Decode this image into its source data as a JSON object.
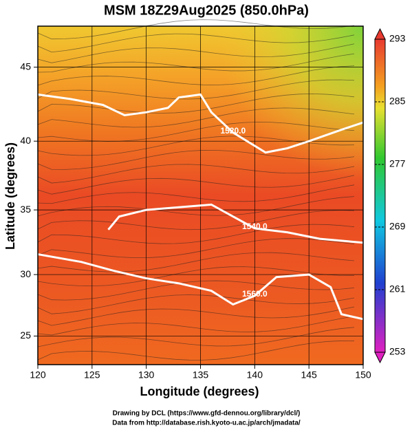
{
  "chart_data": {
    "type": "map",
    "title": "MSM 18Z29Aug2025 (850.0hPa)",
    "xlabel": "Longitude (degrees)",
    "ylabel": "Latitude  (degrees)",
    "projection": "mercator",
    "grid": true,
    "xlim": [
      120,
      150
    ],
    "ylim": [
      22.6,
      47.6
    ],
    "xticks": [
      120,
      125,
      130,
      135,
      140,
      145,
      150
    ],
    "yticks": [
      25,
      30,
      35,
      40,
      45
    ],
    "colorbar": {
      "lim": [
        253,
        293
      ],
      "ticks": [
        253,
        261,
        269,
        277,
        285,
        293
      ]
    },
    "contours": [
      {
        "label": "1520.0",
        "x": [
          120,
          123,
          126,
          128,
          130,
          132,
          133,
          135,
          136,
          138,
          141,
          143,
          145,
          148,
          150
        ],
        "y": [
          43.2,
          42.9,
          42.5,
          41.8,
          42.0,
          42.3,
          43.0,
          43.2,
          42.0,
          40.6,
          39.2,
          39.5,
          40.0,
          40.8,
          41.3
        ]
      },
      {
        "label": "1540.0",
        "x": [
          126.5,
          127.5,
          130,
          133,
          136,
          138,
          140,
          143,
          146,
          150
        ],
        "y": [
          33.5,
          34.5,
          35.0,
          35.2,
          35.4,
          34.5,
          33.6,
          33.3,
          32.8,
          32.5
        ]
      },
      {
        "label": "1560.0",
        "x": [
          120,
          124,
          127,
          130,
          133,
          136,
          138,
          140,
          142,
          145,
          147,
          148,
          150
        ],
        "y": [
          31.6,
          31.0,
          30.3,
          29.7,
          29.3,
          28.7,
          27.6,
          28.3,
          29.8,
          30.0,
          29.0,
          26.8,
          26.4
        ]
      }
    ],
    "footer": [
      "Drawing by DCL (https://www.gfd-dennou.org/library/dcl/)",
      "Data from http://database.rish.kyoto-u.ac.jp/arch/jmadata/"
    ]
  }
}
